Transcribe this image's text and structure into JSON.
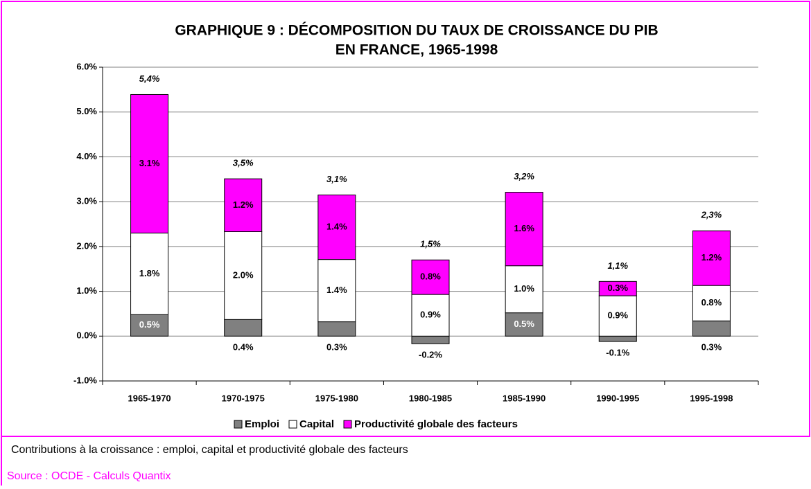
{
  "chart_data": {
    "type": "stacked-bar",
    "title": [
      "GRAPHIQUE 9 : DÉCOMPOSITION DU TAUX DE CROISSANCE DU PIB",
      "EN FRANCE, 1965-1998"
    ],
    "categories": [
      "1965-1970",
      "1970-1975",
      "1975-1980",
      "1980-1985",
      "1985-1990",
      "1990-1995",
      "1995-1998"
    ],
    "series": [
      {
        "name": "Emploi",
        "color": "#808080",
        "values": [
          0.48,
          0.37,
          0.32,
          -0.17,
          0.52,
          -0.12,
          0.34
        ],
        "value_labels": [
          "0.5%",
          "0.4%",
          "0.3%",
          "-0.2%",
          "0.5%",
          "-0.1%",
          "0.3%"
        ]
      },
      {
        "name": "Capital",
        "color": "#ffffff",
        "values": [
          1.82,
          1.96,
          1.39,
          0.93,
          1.05,
          0.9,
          0.79
        ],
        "value_labels": [
          "1.8%",
          "2.0%",
          "1.4%",
          "0.9%",
          "1.0%",
          "0.9%",
          "0.8%"
        ]
      },
      {
        "name": "Productivité globale des facteurs",
        "color": "#ff00ff",
        "values": [
          3.09,
          1.18,
          1.44,
          0.77,
          1.64,
          0.32,
          1.22
        ],
        "value_labels": [
          "3.1%",
          "1.2%",
          "1.4%",
          "0.8%",
          "1.6%",
          "0.3%",
          "1.2%"
        ]
      }
    ],
    "totals": {
      "values": [
        5.4,
        3.5,
        3.1,
        1.5,
        3.2,
        1.1,
        2.3
      ],
      "value_labels": [
        "5,4%",
        "3,5%",
        "3,1%",
        "1,5%",
        "3,2%",
        "1,1%",
        "2,3%"
      ]
    },
    "ylim": [
      -1,
      6
    ],
    "yticks": [
      {
        "value": -1,
        "label": "-1.0%"
      },
      {
        "value": 0,
        "label": "0.0%"
      },
      {
        "value": 1,
        "label": "1.0%"
      },
      {
        "value": 2,
        "label": "2.0%"
      },
      {
        "value": 3,
        "label": "3.0%"
      },
      {
        "value": 4,
        "label": "4.0%"
      },
      {
        "value": 5,
        "label": "5.0%"
      },
      {
        "value": 6,
        "label": "6.0%"
      }
    ],
    "grid": true,
    "legend": "bottom",
    "caption": "Contributions à la croissance : emploi, capital et productivité globale des facteurs",
    "source": "Source : OCDE - Calculs Quantix"
  }
}
